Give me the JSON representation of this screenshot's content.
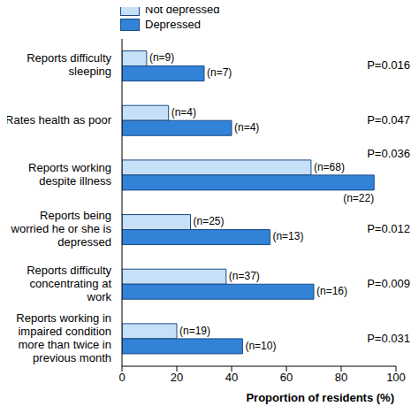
{
  "chart_data": {
    "type": "bar",
    "orientation": "horizontal",
    "categories": [
      "Reports difficulty sleeping",
      "Rates health as poor",
      "Reports working despite illness",
      "Reports being worried he or she is depressed",
      "Reports difficulty concentrating at work",
      "Reports working in impaired condition more than twice in previous month"
    ],
    "series": [
      {
        "name": "Not depressed",
        "color": "#c6e0f7",
        "values": [
          9,
          17,
          69,
          25,
          38,
          20
        ],
        "annotations": [
          "(n=9)",
          "(n=4)",
          "(n=68)",
          "(n=25)",
          "(n=37)",
          "(n=19)"
        ]
      },
      {
        "name": "Depressed",
        "color": "#3282d8",
        "values": [
          30,
          40,
          92,
          54,
          70,
          44
        ],
        "annotations": [
          "(n=7)",
          "(n=4)",
          "(n=22)",
          "(n=13)",
          "(n=16)",
          "(n=10)"
        ]
      }
    ],
    "p_values": [
      "P=0.016",
      "P=0.047",
      "P=0.036",
      "P=0.012",
      "P=0.009",
      "P=0.031"
    ],
    "xlabel": "Proportion of residents (%)",
    "xlim": [
      0,
      100
    ],
    "xticks": [
      0,
      20,
      40,
      60,
      80,
      100
    ],
    "grid": false,
    "legend": "top-left"
  }
}
